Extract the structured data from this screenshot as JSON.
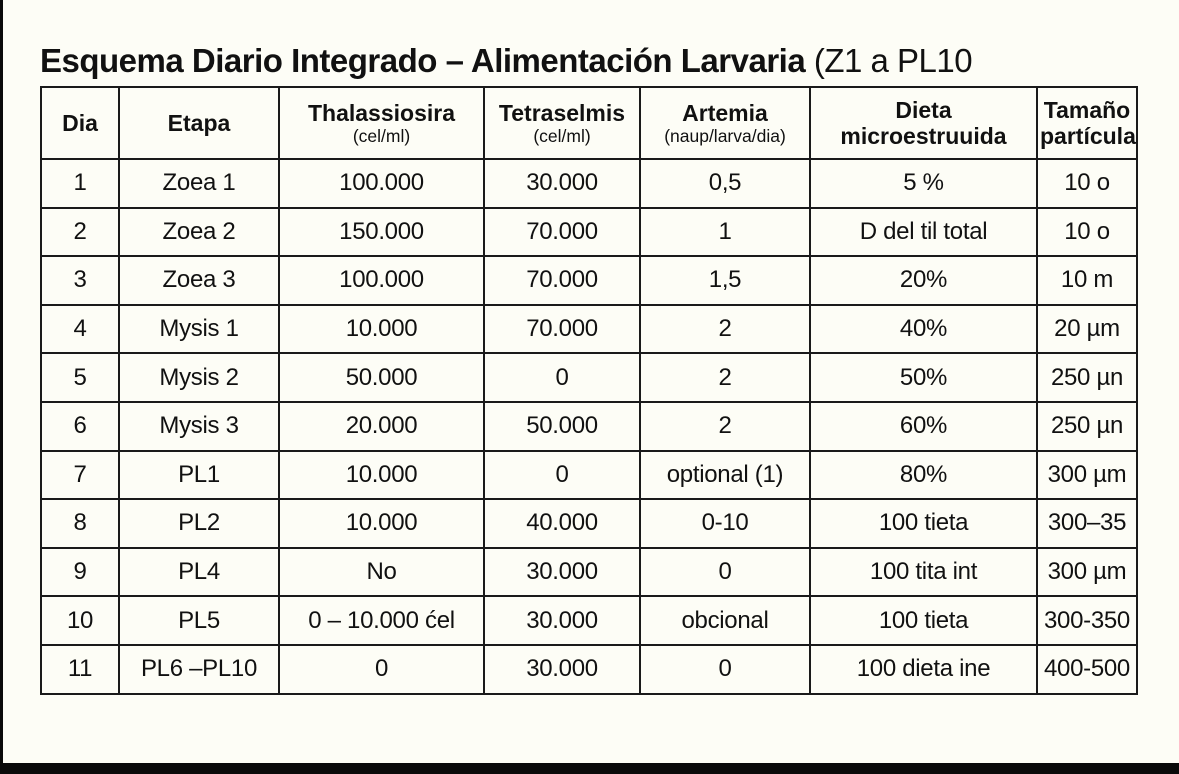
{
  "title": {
    "main": "Esquema Diario Integrado – Alimentación Larvaria",
    "suffix": "(Z1 a PL10"
  },
  "table": {
    "headers": [
      {
        "title": "Dia"
      },
      {
        "title": "Etapa"
      },
      {
        "title": "Thalassiosira",
        "unit": "(cel/ml)"
      },
      {
        "title": "Tetraselmis",
        "unit": "(cel/ml)"
      },
      {
        "title": "Artemia",
        "unit": "(naup/larva/dia)"
      },
      {
        "title": "Dieta",
        "title2": "microestruuida"
      },
      {
        "title": "Tamaño",
        "title2": "partícula"
      }
    ],
    "rows": [
      [
        "1",
        "Zoea 1",
        "100.000",
        "30.000",
        "0,5",
        "5 %",
        "10 o"
      ],
      [
        "2",
        "Zoea 2",
        "150.000",
        "70.000",
        "1",
        "D del til total",
        "10 o"
      ],
      [
        "3",
        "Zoea 3",
        "100.000",
        "70.000",
        "1,5",
        "20%",
        "10 m"
      ],
      [
        "4",
        "Mysis 1",
        "10.000",
        "70.000",
        "2",
        "40%",
        "20 µm"
      ],
      [
        "5",
        "Mysis 2",
        "50.000",
        "0",
        "2",
        "50%",
        "250 µn"
      ],
      [
        "6",
        "Mysis 3",
        "20.000",
        "50.000",
        "2",
        "60%",
        "250 µn"
      ],
      [
        "7",
        "PL1",
        "10.000",
        "0",
        "optional (1)",
        "80%",
        "300 µm"
      ],
      [
        "8",
        "PL2",
        "10.000",
        "40.000",
        "0-10",
        "100 tieta",
        "300–35"
      ],
      [
        "9",
        "PL4",
        "No",
        "30.000",
        "0",
        "100 tita int",
        "300 µm"
      ],
      [
        "10",
        "PL5",
        "0 – 10.000 ćel",
        "30.000",
        "obcional",
        "100 tieta",
        "300-350"
      ],
      [
        "11",
        "PL6 –PL10",
        "0",
        "30.000",
        "0",
        "100 dieta ine",
        "400-500"
      ]
    ]
  }
}
